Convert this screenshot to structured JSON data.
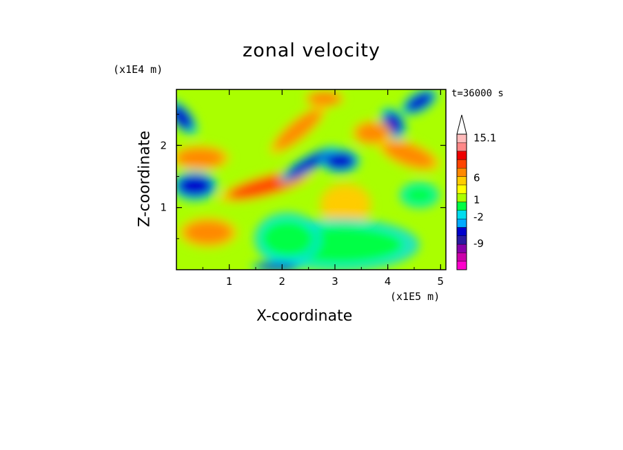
{
  "chart_data": {
    "type": "heatmap",
    "title": "zonal velocity",
    "xlabel": "X-coordinate",
    "ylabel": "Z-coordinate",
    "x_unit": "(x1E5 m)",
    "y_unit": "(x1E4 m)",
    "time_label": "t=36000 s",
    "xlim": [
      0,
      5.1
    ],
    "ylim": [
      0,
      2.9
    ],
    "x_ticks": [
      "1",
      "2",
      "3",
      "4",
      "5"
    ],
    "y_ticks": [
      "1",
      "2"
    ],
    "colorbar": {
      "labels": [
        "15.1",
        "6",
        "1",
        "-2",
        "-9"
      ],
      "label_values": [
        15.1,
        6,
        1,
        -2,
        -9
      ],
      "colors": [
        "#ff00cc",
        "#cc00aa",
        "#8800aa",
        "#2a1aa0",
        "#0000cc",
        "#00aaff",
        "#00ddee",
        "#00ff44",
        "#aaff00",
        "#ffff00",
        "#ffcc00",
        "#ff8800",
        "#ff4400",
        "#ee0000",
        "#ff8888",
        "#ffbbbb"
      ]
    },
    "features": [
      {
        "x": 0.35,
        "z": 1.35,
        "value": -8,
        "rx": 0.35,
        "rz": 0.18,
        "rot": 0
      },
      {
        "x": 0.6,
        "z": 0.6,
        "value": 6,
        "rx": 0.45,
        "rz": 0.18,
        "rot": 0
      },
      {
        "x": 0.45,
        "z": 1.8,
        "value": 6,
        "rx": 0.45,
        "rz": 0.15,
        "rot": 0
      },
      {
        "x": 0.1,
        "z": 2.45,
        "value": -8,
        "rx": 0.15,
        "rz": 0.25,
        "rot": -40
      },
      {
        "x": 1.7,
        "z": 1.35,
        "value": 7,
        "rx": 0.75,
        "rz": 0.13,
        "rot": -15
      },
      {
        "x": 2.3,
        "z": 2.25,
        "value": 6,
        "rx": 0.55,
        "rz": 0.12,
        "rot": -40
      },
      {
        "x": 2.5,
        "z": 1.7,
        "value": -8,
        "rx": 0.5,
        "rz": 0.1,
        "rot": -30
      },
      {
        "x": 3.1,
        "z": 1.75,
        "value": -9,
        "rx": 0.3,
        "rz": 0.15,
        "rot": 0
      },
      {
        "x": 4.4,
        "z": 1.85,
        "value": 6,
        "rx": 0.5,
        "rz": 0.15,
        "rot": 20
      },
      {
        "x": 4.1,
        "z": 2.35,
        "value": -8,
        "rx": 0.18,
        "rz": 0.2,
        "rot": -30
      },
      {
        "x": 4.6,
        "z": 2.7,
        "value": -8,
        "rx": 0.3,
        "rz": 0.12,
        "rot": -30
      },
      {
        "x": 3.2,
        "z": 1.05,
        "value": 3,
        "rx": 0.4,
        "rz": 0.25,
        "rot": 0
      },
      {
        "x": 3.1,
        "z": 0.4,
        "value": -2,
        "rx": 1.2,
        "rz": 0.3,
        "rot": 0
      },
      {
        "x": 4.6,
        "z": 1.2,
        "value": -2,
        "rx": 0.3,
        "rz": 0.15,
        "rot": 0
      },
      {
        "x": 2.1,
        "z": 0.5,
        "value": -2,
        "rx": 0.5,
        "rz": 0.3,
        "rot": 0
      },
      {
        "x": 3.7,
        "z": 2.2,
        "value": 5,
        "rx": 0.3,
        "rz": 0.15,
        "rot": 0
      },
      {
        "x": 2.8,
        "z": 2.75,
        "value": 5,
        "rx": 0.3,
        "rz": 0.1,
        "rot": 0
      },
      {
        "x": 1.9,
        "z": 0.05,
        "value": -8,
        "rx": 0.4,
        "rz": 0.06,
        "rot": 0
      }
    ]
  }
}
